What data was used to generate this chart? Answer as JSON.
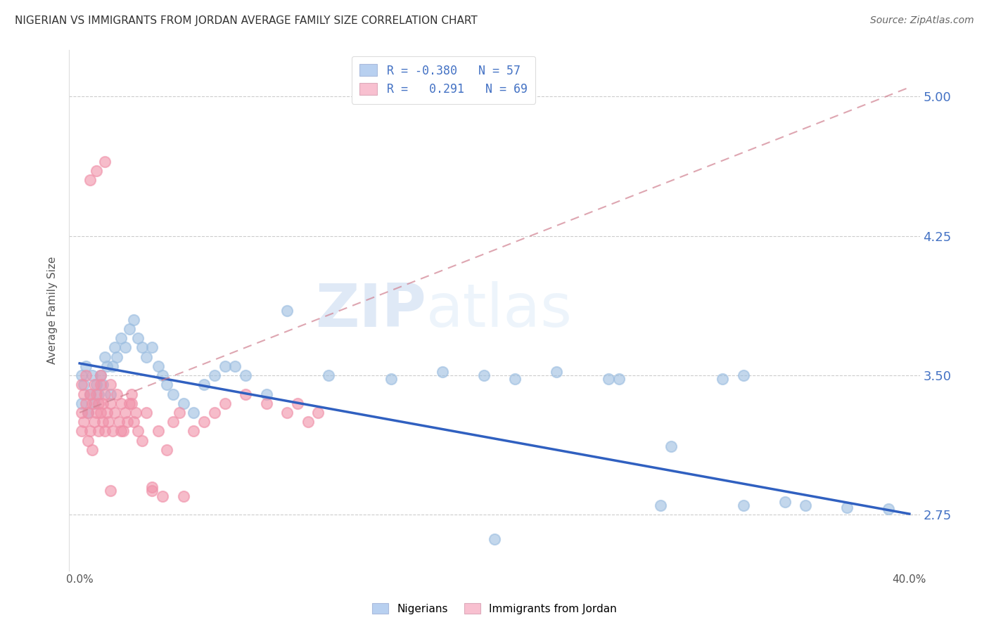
{
  "title": "NIGERIAN VS IMMIGRANTS FROM JORDAN AVERAGE FAMILY SIZE CORRELATION CHART",
  "source": "Source: ZipAtlas.com",
  "ylabel": "Average Family Size",
  "xlim": [
    -0.005,
    0.405
  ],
  "ylim": [
    2.45,
    5.25
  ],
  "yticks": [
    2.75,
    3.5,
    4.25,
    5.0
  ],
  "xticks": [
    0.0,
    0.05,
    0.1,
    0.15,
    0.2,
    0.25,
    0.3,
    0.35,
    0.4
  ],
  "legend_entries": [
    {
      "label": "R = -0.380   N = 57",
      "color": "#b8d0f0"
    },
    {
      "label": "R =   0.291   N = 69",
      "color": "#f8c0d0"
    }
  ],
  "legend_bottom": [
    "Nigerians",
    "Immigrants from Jordan"
  ],
  "legend_bottom_colors": [
    "#b8d0f0",
    "#f8c0d0"
  ],
  "watermark_zip": "ZIP",
  "watermark_atlas": "atlas",
  "blue_color": "#3060C0",
  "pink_trendline_color": "#D08090",
  "scatter_blue_color": "#9BBDE0",
  "scatter_pink_color": "#F090A8",
  "blue_trendline": [
    0.0,
    3.565,
    0.4,
    2.755
  ],
  "pink_trendline": [
    0.0,
    3.3,
    0.4,
    5.05
  ],
  "blue_scatter_x": [
    0.001,
    0.001,
    0.002,
    0.003,
    0.004,
    0.005,
    0.006,
    0.007,
    0.008,
    0.009,
    0.01,
    0.011,
    0.012,
    0.013,
    0.015,
    0.016,
    0.017,
    0.018,
    0.02,
    0.022,
    0.024,
    0.026,
    0.028,
    0.03,
    0.032,
    0.035,
    0.038,
    0.04,
    0.042,
    0.045,
    0.05,
    0.055,
    0.06,
    0.065,
    0.07,
    0.075,
    0.08,
    0.09,
    0.1,
    0.12,
    0.15,
    0.175,
    0.195,
    0.21,
    0.23,
    0.255,
    0.285,
    0.31,
    0.32,
    0.34,
    0.35,
    0.37,
    0.39,
    0.32,
    0.28,
    0.26,
    0.2
  ],
  "blue_scatter_y": [
    3.5,
    3.35,
    3.45,
    3.55,
    3.3,
    3.4,
    3.5,
    3.35,
    3.45,
    3.4,
    3.5,
    3.45,
    3.6,
    3.55,
    3.4,
    3.55,
    3.65,
    3.6,
    3.7,
    3.65,
    3.75,
    3.8,
    3.7,
    3.65,
    3.6,
    3.65,
    3.55,
    3.5,
    3.45,
    3.4,
    3.35,
    3.3,
    3.45,
    3.5,
    3.55,
    3.55,
    3.5,
    3.4,
    3.85,
    3.5,
    3.48,
    3.52,
    3.5,
    3.48,
    3.52,
    3.48,
    3.12,
    3.48,
    2.8,
    2.82,
    2.8,
    2.79,
    2.78,
    3.5,
    2.8,
    3.48,
    2.62
  ],
  "pink_scatter_x": [
    0.001,
    0.001,
    0.001,
    0.002,
    0.002,
    0.003,
    0.003,
    0.004,
    0.004,
    0.005,
    0.005,
    0.006,
    0.006,
    0.007,
    0.007,
    0.008,
    0.008,
    0.009,
    0.009,
    0.01,
    0.01,
    0.011,
    0.011,
    0.012,
    0.012,
    0.013,
    0.014,
    0.015,
    0.015,
    0.016,
    0.017,
    0.018,
    0.019,
    0.02,
    0.021,
    0.022,
    0.023,
    0.024,
    0.025,
    0.026,
    0.027,
    0.028,
    0.03,
    0.032,
    0.035,
    0.038,
    0.04,
    0.042,
    0.045,
    0.048,
    0.055,
    0.06,
    0.065,
    0.07,
    0.08,
    0.09,
    0.1,
    0.105,
    0.11,
    0.115,
    0.05,
    0.035,
    0.02,
    0.01,
    0.025,
    0.015,
    0.008,
    0.012,
    0.005
  ],
  "pink_scatter_y": [
    3.3,
    3.45,
    3.2,
    3.4,
    3.25,
    3.35,
    3.5,
    3.3,
    3.15,
    3.4,
    3.2,
    3.35,
    3.1,
    3.45,
    3.25,
    3.3,
    3.4,
    3.2,
    3.35,
    3.3,
    3.45,
    3.25,
    3.35,
    3.4,
    3.2,
    3.3,
    3.25,
    3.35,
    3.45,
    3.2,
    3.3,
    3.4,
    3.25,
    3.35,
    3.2,
    3.3,
    3.25,
    3.35,
    3.4,
    3.25,
    3.3,
    3.2,
    3.15,
    3.3,
    2.88,
    3.2,
    2.85,
    3.1,
    3.25,
    3.3,
    3.2,
    3.25,
    3.3,
    3.35,
    3.4,
    3.35,
    3.3,
    3.35,
    3.25,
    3.3,
    2.85,
    2.9,
    3.2,
    3.5,
    3.35,
    2.88,
    4.6,
    4.65,
    4.55
  ]
}
